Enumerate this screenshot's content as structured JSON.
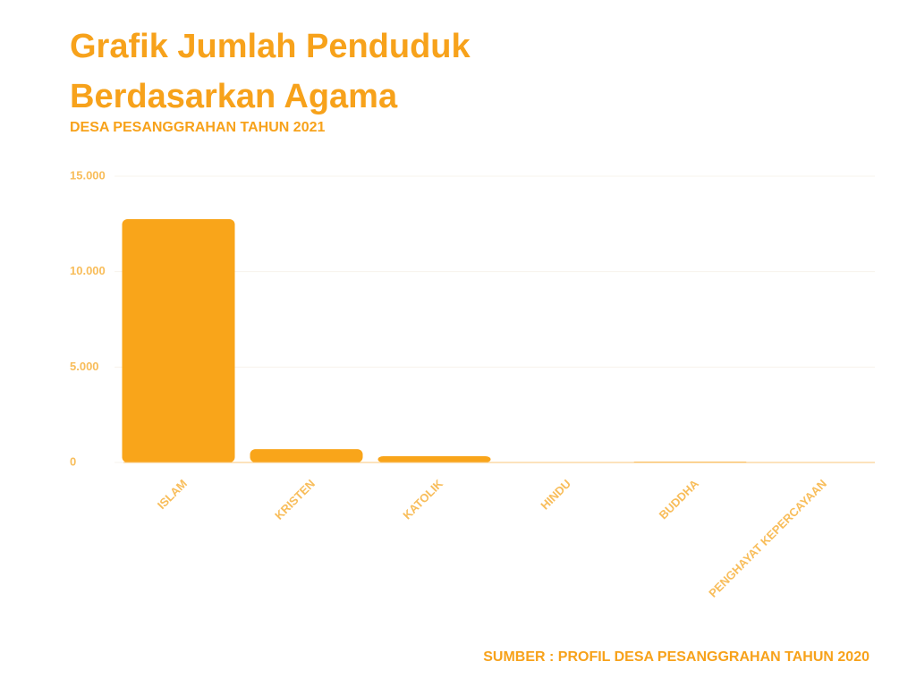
{
  "chart_data": {
    "type": "bar",
    "title": "Grafik Jumlah Penduduk Berdasarkan Agama",
    "subtitle": "DESA PESANGGRAHAN TAHUN 2021",
    "source": "SUMBER : PROFIL DESA PESANGGRAHAN TAHUN 2020",
    "categories": [
      "ISLAM",
      "KRISTEN",
      "KATOLIK",
      "HINDU",
      "BUDDHA",
      "PENGHAYAT KEPERCAYAAN"
    ],
    "values": [
      12750,
      700,
      330,
      10,
      40,
      5
    ],
    "color": "#f9a51a",
    "ylim": [
      0,
      15000
    ],
    "yticks": [
      0,
      {
        "value": 5000,
        "label": "5.000"
      },
      {
        "value": 10000,
        "label": "10.000"
      },
      {
        "value": 15000,
        "label": "15.000"
      }
    ],
    "grid": true
  }
}
